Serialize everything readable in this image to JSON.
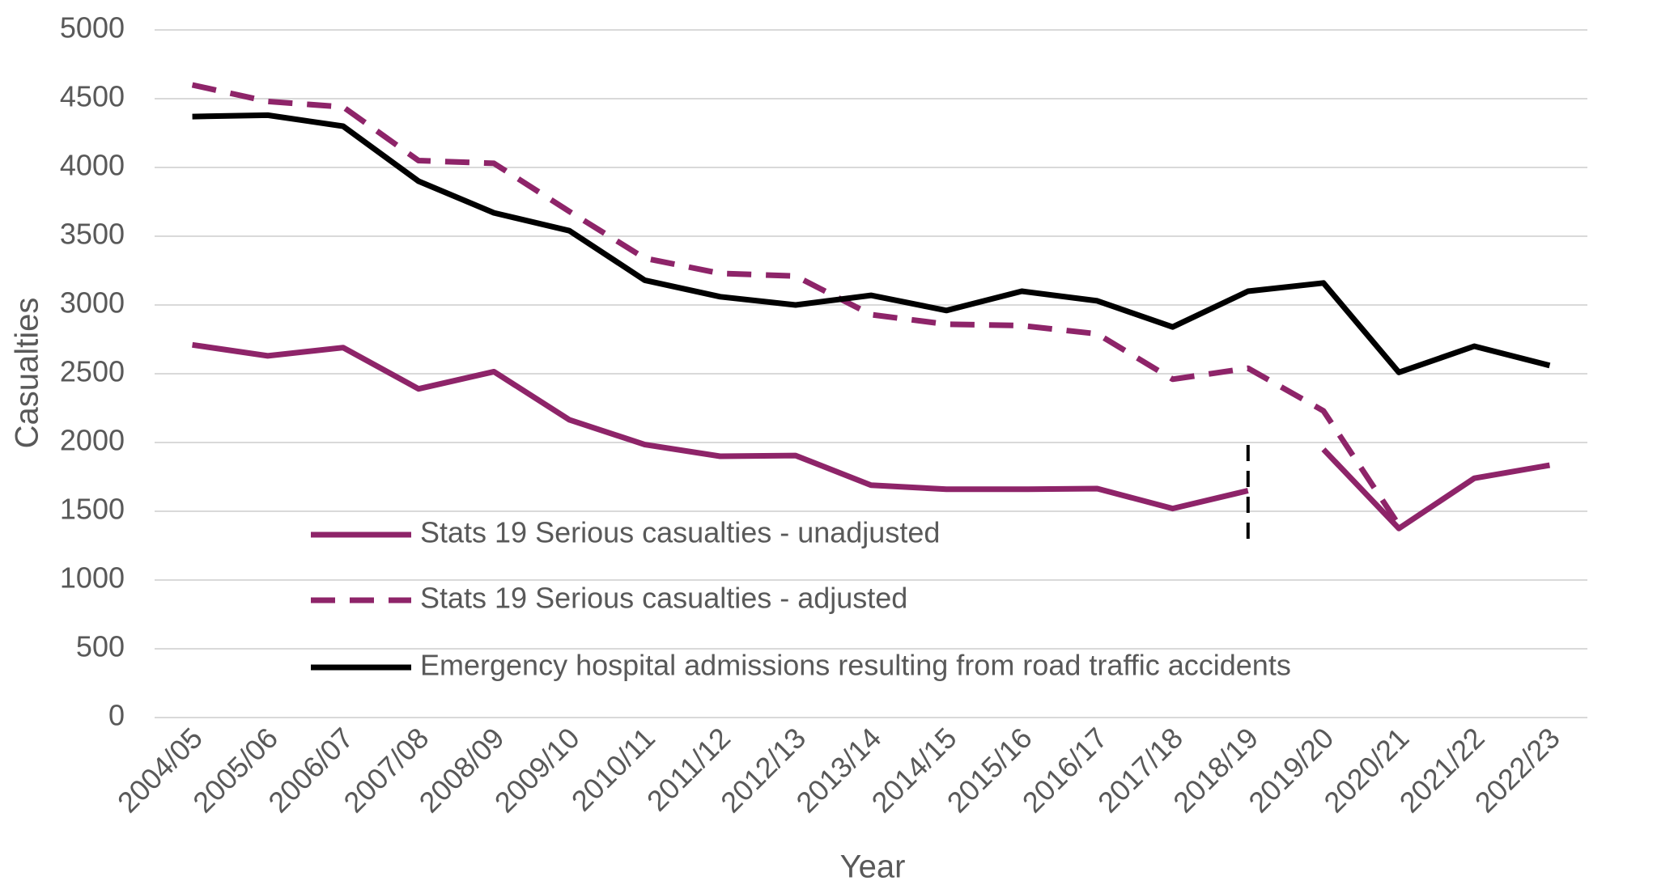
{
  "chart_data": {
    "type": "line",
    "x_label": "Year",
    "y_label": "Casualties",
    "categories": [
      "2004/05",
      "2005/06",
      "2006/07",
      "2007/08",
      "2008/09",
      "2009/10",
      "2010/11",
      "2011/12",
      "2012/13",
      "2013/14",
      "2014/15",
      "2015/16",
      "2016/17",
      "2017/18",
      "2018/19",
      "2019/20",
      "2020/21",
      "2021/22",
      "2022/23"
    ],
    "series": [
      {
        "name": "Stats 19 Serious casualties - unadjusted",
        "color": "#8e2469",
        "dash": false,
        "values": [
          2710,
          2630,
          2690,
          2390,
          2515,
          2165,
          1985,
          1900,
          1905,
          1690,
          1660,
          1660,
          1665,
          1520,
          1650,
          1950,
          1375,
          1740,
          1835
        ]
      },
      {
        "name": "Stats 19 Serious casualties - adjusted",
        "color": "#8e2469",
        "dash": true,
        "values": [
          4600,
          4480,
          4440,
          4050,
          4030,
          3680,
          3340,
          3230,
          3210,
          2930,
          2860,
          2850,
          2790,
          2460,
          2540,
          2230,
          1400,
          null,
          null
        ]
      },
      {
        "name": "Emergency hospital admissions resulting from road traffic accidents",
        "color": "#000000",
        "dash": false,
        "values": [
          4370,
          4380,
          4300,
          3900,
          3670,
          3540,
          3180,
          3060,
          3000,
          3070,
          2960,
          3100,
          3030,
          2840,
          3100,
          3160,
          2510,
          2700,
          2560
        ]
      }
    ],
    "divider": {
      "category": "2018/19",
      "range": [
        1300,
        2000
      ],
      "breaks_series": 0
    },
    "ylim": [
      0,
      5000
    ],
    "yticks": [
      0,
      500,
      1000,
      1500,
      2000,
      2500,
      3000,
      3500,
      4000,
      4500,
      5000
    ],
    "grid": true,
    "legend": "bottom-left"
  }
}
